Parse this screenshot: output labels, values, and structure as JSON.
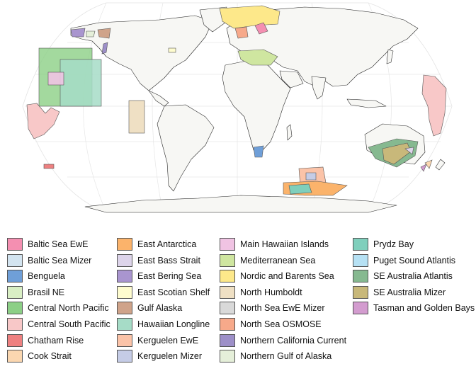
{
  "map": {
    "projection": "Robinson (world)",
    "land_color": "#f7f7f4",
    "border_color": "#2a2a2a",
    "graticule_color": "#dcdcdc",
    "ocean_color": "#ffffff"
  },
  "legend": {
    "columns": [
      [
        {
          "label": "Baltic Sea EwE",
          "color": "#f48fb1"
        },
        {
          "label": "Baltic Sea Mizer",
          "color": "#d3e4f0"
        },
        {
          "label": "Benguela",
          "color": "#6f9fd8"
        },
        {
          "label": "Brasil NE",
          "color": "#d9efc4"
        },
        {
          "label": "Central North Pacific",
          "color": "#8ccf86"
        },
        {
          "label": "Central South Pacific",
          "color": "#f8c8c8"
        },
        {
          "label": "Chatham Rise",
          "color": "#ee8080"
        },
        {
          "label": "Cook Strait",
          "color": "#fbd7b0"
        }
      ],
      [
        {
          "label": "East Antarctica",
          "color": "#fbb36b"
        },
        {
          "label": "East Bass Strait",
          "color": "#ddd4ea"
        },
        {
          "label": "East Bering Sea",
          "color": "#a995cf"
        },
        {
          "label": "East Scotian Shelf",
          "color": "#fefccf"
        },
        {
          "label": "Gulf Alaska",
          "color": "#cfa38a"
        },
        {
          "label": "Hawaiian Longline",
          "color": "#a6dcc7"
        },
        {
          "label": "Kerguelen EwE",
          "color": "#fbc3a8"
        },
        {
          "label": "Kerguelen Mizer",
          "color": "#c5cce6"
        }
      ],
      [
        {
          "label": "Main Hawaiian Islands",
          "color": "#f0c3e3"
        },
        {
          "label": "Mediterranean Sea",
          "color": "#cfe6a0"
        },
        {
          "label": "Nordic and Barents Sea",
          "color": "#fde88a"
        },
        {
          "label": "North Humboldt",
          "color": "#efe0c4"
        },
        {
          "label": "North Sea EwE Mizer",
          "color": "#d9d9d9"
        },
        {
          "label": "North Sea OSMOSE",
          "color": "#f7a98a"
        },
        {
          "label": "Northern California Current",
          "color": "#9d8fc8"
        },
        {
          "label": "Northern Gulf of Alaska",
          "color": "#e5efd9"
        }
      ],
      [
        {
          "label": "Prydz Bay",
          "color": "#7fcfbc"
        },
        {
          "label": "Puget Sound Atlantis",
          "color": "#b6e1f4"
        },
        {
          "label": "SE Australia Atlantis",
          "color": "#86b990"
        },
        {
          "label": "SE Australia Mizer",
          "color": "#c8b87a"
        },
        {
          "label": "Tasman and Golden Bays",
          "color": "#d39ccf"
        }
      ]
    ]
  }
}
